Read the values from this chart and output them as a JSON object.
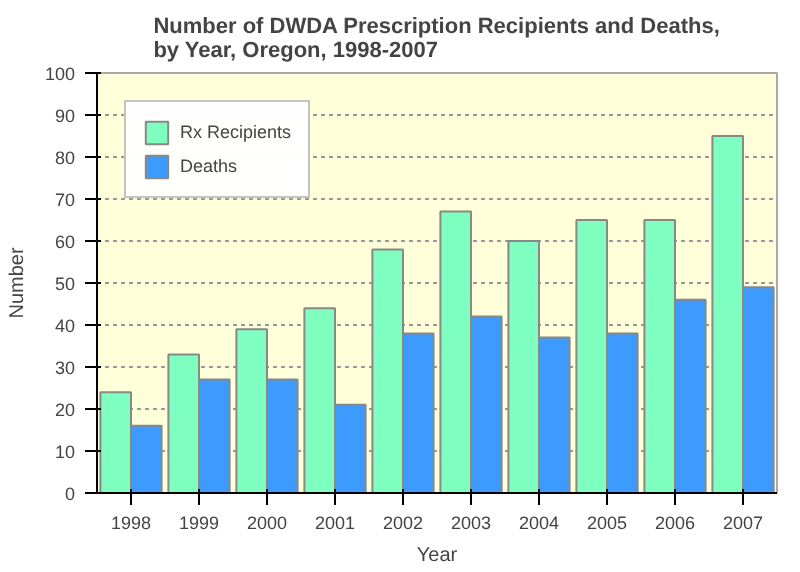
{
  "chart_data": {
    "type": "bar",
    "title": "Number of DWDA Prescription Recipients and Deaths,\nby Year, Oregon, 1998-2007",
    "xlabel": "Year",
    "ylabel": "Number",
    "categories": [
      "1998",
      "1999",
      "2000",
      "2001",
      "2002",
      "2003",
      "2004",
      "2005",
      "2006",
      "2007"
    ],
    "series": [
      {
        "name": "Rx Recipients",
        "color": "#7fffbf",
        "values": [
          24,
          33,
          39,
          44,
          58,
          67,
          60,
          65,
          65,
          85
        ]
      },
      {
        "name": "Deaths",
        "color": "#3d9bff",
        "values": [
          16,
          27,
          27,
          21,
          38,
          42,
          37,
          38,
          46,
          49
        ]
      }
    ],
    "ylim": [
      0,
      100
    ],
    "yticks": [
      0,
      10,
      20,
      30,
      40,
      50,
      60,
      70,
      80,
      90,
      100
    ],
    "grid": "y",
    "legend": "top left"
  }
}
